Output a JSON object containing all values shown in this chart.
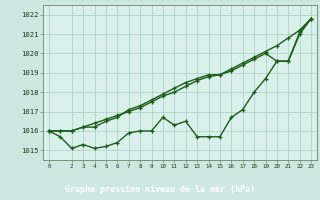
{
  "bg_color": "#cce8e0",
  "plot_bg_color": "#daf0ea",
  "grid_color": "#aad0c8",
  "line_color": "#1a5e1a",
  "label_bg_color": "#2e8b2e",
  "label_text_color": "#ffffff",
  "title": "Graphe pression niveau de la mer (hPa)",
  "ylim": [
    1014.5,
    1022.5
  ],
  "xlim": [
    -0.5,
    23.5
  ],
  "yticks": [
    1015,
    1016,
    1017,
    1018,
    1019,
    1020,
    1021,
    1022
  ],
  "xticks": [
    0,
    2,
    3,
    4,
    5,
    6,
    7,
    8,
    9,
    10,
    11,
    12,
    13,
    14,
    15,
    16,
    17,
    18,
    19,
    20,
    21,
    22,
    23
  ],
  "line1_x": [
    0,
    1,
    2,
    3,
    4,
    5,
    6,
    7,
    8,
    9,
    10,
    11,
    12,
    13,
    14,
    15,
    16,
    17,
    18,
    19,
    20,
    21,
    22,
    23
  ],
  "line1_y": [
    1016.0,
    1015.7,
    1015.1,
    1015.3,
    1015.1,
    1015.2,
    1015.4,
    1015.9,
    1016.0,
    1016.0,
    1016.7,
    1016.3,
    1016.5,
    1015.7,
    1015.7,
    1015.7,
    1016.7,
    1017.1,
    1018.0,
    1018.7,
    1019.6,
    1019.6,
    1021.0,
    1021.8
  ],
  "line2_x": [
    0,
    1,
    2,
    3,
    4,
    5,
    6,
    7,
    8,
    9,
    10,
    11,
    12,
    13,
    14,
    15,
    16,
    17,
    18,
    19,
    20,
    21,
    22,
    23
  ],
  "line2_y": [
    1016.0,
    1016.0,
    1016.0,
    1016.2,
    1016.2,
    1016.5,
    1016.7,
    1017.1,
    1017.3,
    1017.6,
    1017.9,
    1018.2,
    1018.5,
    1018.7,
    1018.9,
    1018.9,
    1019.2,
    1019.5,
    1019.8,
    1020.1,
    1020.4,
    1020.8,
    1021.2,
    1021.8
  ],
  "line3_x": [
    0,
    1,
    2,
    3,
    4,
    5,
    6,
    7,
    8,
    9,
    10,
    11,
    12,
    13,
    14,
    15,
    16,
    17,
    18,
    19,
    20,
    21,
    22,
    23
  ],
  "line3_y": [
    1016.0,
    1016.0,
    1016.0,
    1016.2,
    1016.4,
    1016.6,
    1016.8,
    1017.0,
    1017.2,
    1017.5,
    1017.8,
    1018.0,
    1018.3,
    1018.6,
    1018.8,
    1018.9,
    1019.1,
    1019.4,
    1019.7,
    1020.0,
    1019.6,
    1019.6,
    1021.1,
    1021.8
  ]
}
